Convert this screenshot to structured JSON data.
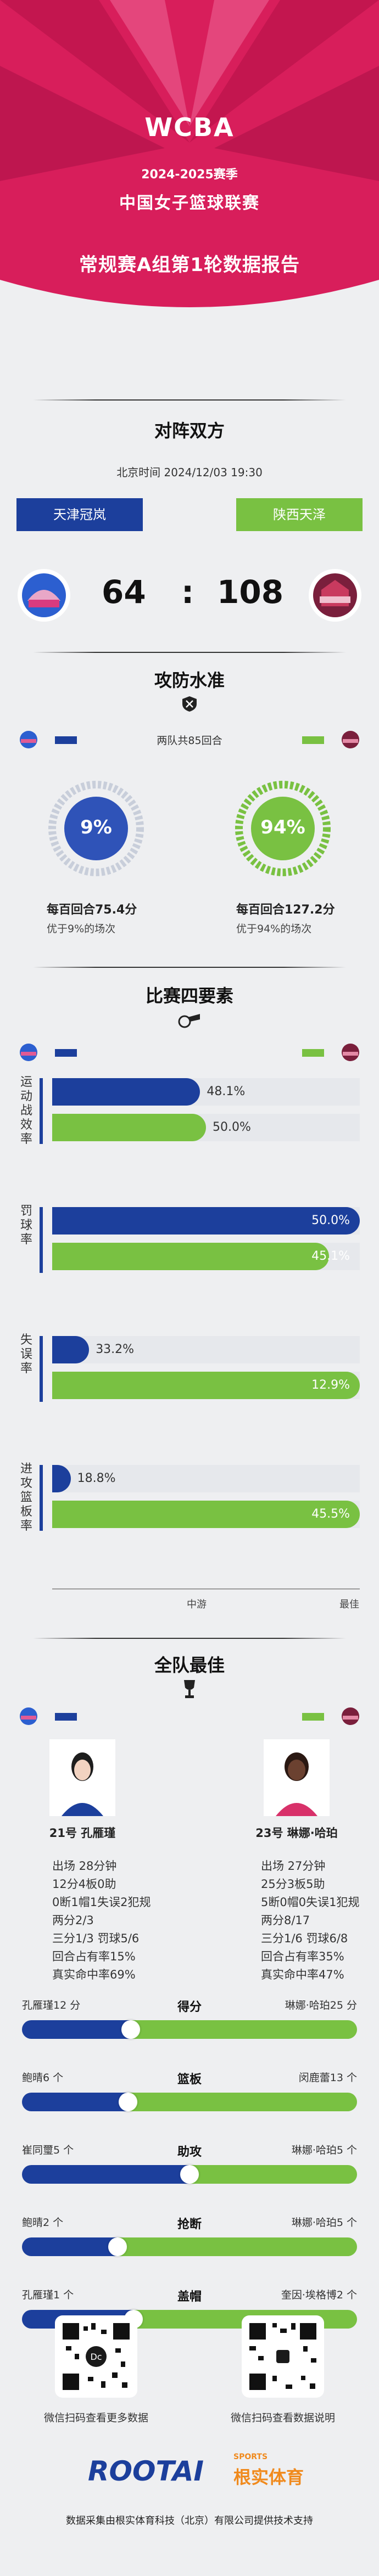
{
  "header": {
    "logo_text": "WCBA",
    "season": "2024-2025赛季",
    "league": "中国女子篮球联赛",
    "report_title": "常规赛A组第1轮数据报告"
  },
  "colors": {
    "brand": "#d81e5b",
    "team_a": "#1c3f9c",
    "team_b": "#79c142"
  },
  "matchup": {
    "title": "对阵双方",
    "datetime": "北京时间 2024/12/03 19:30",
    "team_a": "天津冠岚",
    "team_b": "陕西天泽",
    "score_a": "64",
    "score_sep": ":",
    "score_b": "108"
  },
  "offense_defense": {
    "title": "攻防水准",
    "possessions": "两队共85回合",
    "team_a_pct": "9%",
    "team_b_pct": "94%",
    "team_a_pct_value": 9,
    "team_b_pct_value": 94,
    "team_a_line1": "每百回合75.4分",
    "team_a_line2": "优于9%的场次",
    "team_b_line1": "每百回合127.2分",
    "team_b_line2": "优于94%的场次"
  },
  "four_factors": {
    "title": "比赛四要素",
    "rows": [
      {
        "label": "运动战效率",
        "a_text": "48.1%",
        "b_text": "50.0%",
        "a": 48.1,
        "b": 50.0
      },
      {
        "label": "罚球率",
        "a_text": "50.0%",
        "b_text": "45.1%",
        "a": 100,
        "b": 90
      },
      {
        "label": "失误率",
        "a_text": "33.2%",
        "b_text": "12.9%",
        "a": 12,
        "b": 100
      },
      {
        "label": "进攻篮板率",
        "a_text": "18.8%",
        "b_text": "45.5%",
        "a": 6,
        "b": 100
      }
    ],
    "axis_mid": "中游",
    "axis_best": "最佳"
  },
  "best": {
    "title": "全队最佳",
    "player_a": {
      "name": "21号 孔雁瑾",
      "lines": [
        "出场 28分钟",
        "12分4板0助",
        "0断1帽1失误2犯规",
        "两分2/3",
        "三分1/3 罚球5/6",
        "回合占有率15%",
        "真实命中率69%"
      ]
    },
    "player_b": {
      "name": "23号 琳娜·哈珀",
      "lines": [
        "出场 27分钟",
        "25分3板5助",
        "5断0帽0失误1犯规",
        "两分8/17",
        "三分1/6 罚球6/8",
        "回合占有率35%",
        "真实命中率47%"
      ]
    },
    "stats": [
      {
        "category": "得分",
        "left": "孔雁瑾12 分",
        "right": "琳娜·哈珀25 分",
        "a": 12,
        "b": 25
      },
      {
        "category": "篮板",
        "left": "鲍晴6 个",
        "right": "闵鹿蕾13 个",
        "a": 6,
        "b": 13
      },
      {
        "category": "助攻",
        "left": "崔同璽5 个",
        "right": "琳娜·哈珀5 个",
        "a": 5,
        "b": 5
      },
      {
        "category": "抢断",
        "left": "鲍晴2 个",
        "right": "琳娜·哈珀5 个",
        "a": 2,
        "b": 5
      },
      {
        "category": "盖帽",
        "left": "孔雁瑾1 个",
        "right": "奎因·埃格博2 个",
        "a": 1,
        "b": 2
      }
    ]
  },
  "footer": {
    "qr_left_caption": "微信扫码查看更多数据",
    "qr_right_caption": "微信扫码查看数据说明",
    "brand": "ROOTAI",
    "brand_sports": "SPORTS",
    "brand_cn": "根实体育",
    "credit": "数据采集由根实体育科技（北京）有限公司提供技术支持"
  }
}
